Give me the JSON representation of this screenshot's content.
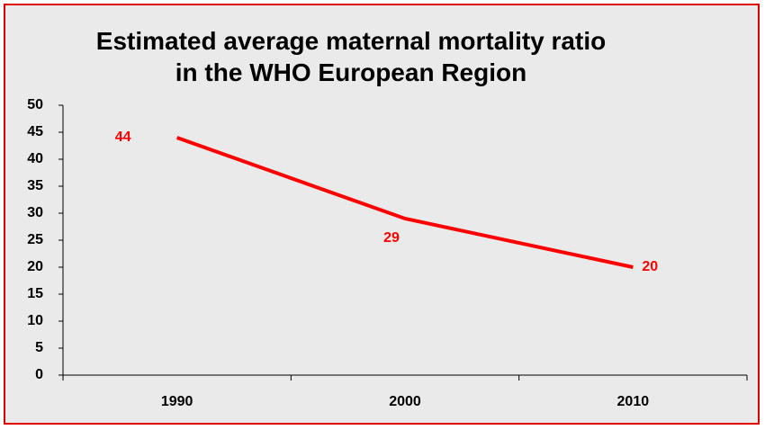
{
  "chart_data": {
    "type": "line",
    "title": "Estimated average maternal mortality ratio in the WHO European Region",
    "categories": [
      "1990",
      "2000",
      "2010"
    ],
    "series": [
      {
        "name": "Maternal mortality ratio",
        "color": "#ff0000",
        "values": [
          44,
          29,
          20
        ]
      }
    ],
    "ylim": [
      0,
      50
    ],
    "yticks": [
      0,
      5,
      10,
      15,
      20,
      25,
      30,
      35,
      40,
      45,
      50
    ],
    "grid": false
  }
}
